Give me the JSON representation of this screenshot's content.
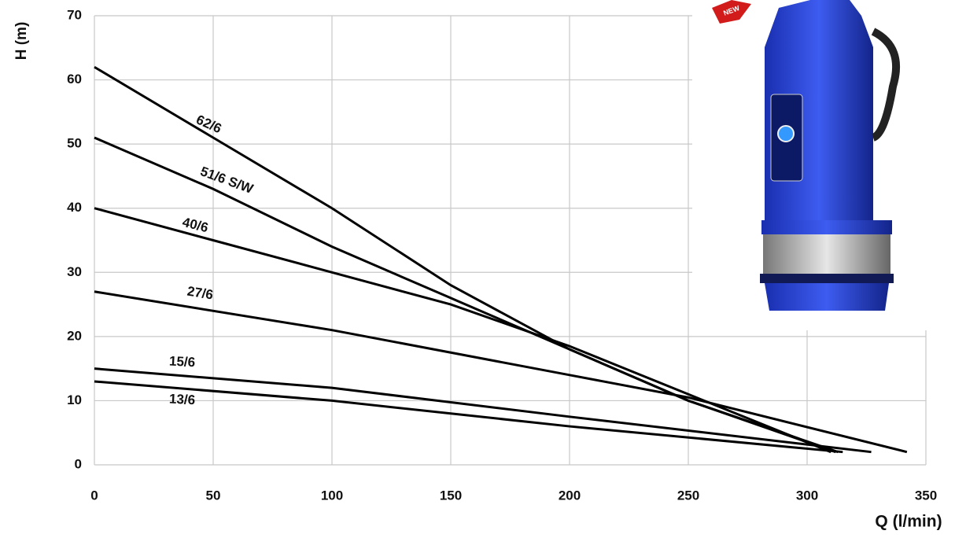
{
  "chart_data": {
    "type": "line",
    "x_label": "Q (l/min)",
    "y_label": "H (m)",
    "badge": "NEW",
    "xlim": [
      0,
      350
    ],
    "xticks": [
      0,
      50,
      100,
      150,
      200,
      250,
      300,
      350
    ],
    "ylim": [
      0,
      70
    ],
    "yticks": [
      0,
      10,
      20,
      30,
      40,
      50,
      60,
      70
    ],
    "grid": true,
    "series": [
      {
        "name": "62/6",
        "color": "#000000",
        "x": [
          0,
          50,
          100,
          150,
          200,
          250,
          313
        ],
        "values": [
          62,
          51,
          40,
          28,
          18,
          10,
          2
        ]
      },
      {
        "name": "51/6 S/W",
        "color": "#000000",
        "x": [
          0,
          50,
          100,
          150,
          200,
          250,
          312
        ],
        "values": [
          51,
          43,
          34,
          26,
          18,
          10,
          2
        ]
      },
      {
        "name": "40/6",
        "color": "#000000",
        "x": [
          0,
          50,
          100,
          150,
          200,
          250,
          310
        ],
        "values": [
          40,
          35,
          30,
          25,
          18.5,
          11,
          2
        ]
      },
      {
        "name": "27/6",
        "color": "#000000",
        "x": [
          0,
          100,
          200,
          250,
          342
        ],
        "values": [
          27,
          21,
          14,
          10.5,
          2
        ]
      },
      {
        "name": "15/6",
        "color": "#000000",
        "x": [
          0,
          100,
          200,
          327
        ],
        "values": [
          15,
          12,
          7.5,
          2
        ]
      },
      {
        "name": "13/6",
        "color": "#000000",
        "x": [
          0,
          100,
          200,
          315
        ],
        "values": [
          13,
          10,
          6,
          2
        ]
      }
    ]
  }
}
